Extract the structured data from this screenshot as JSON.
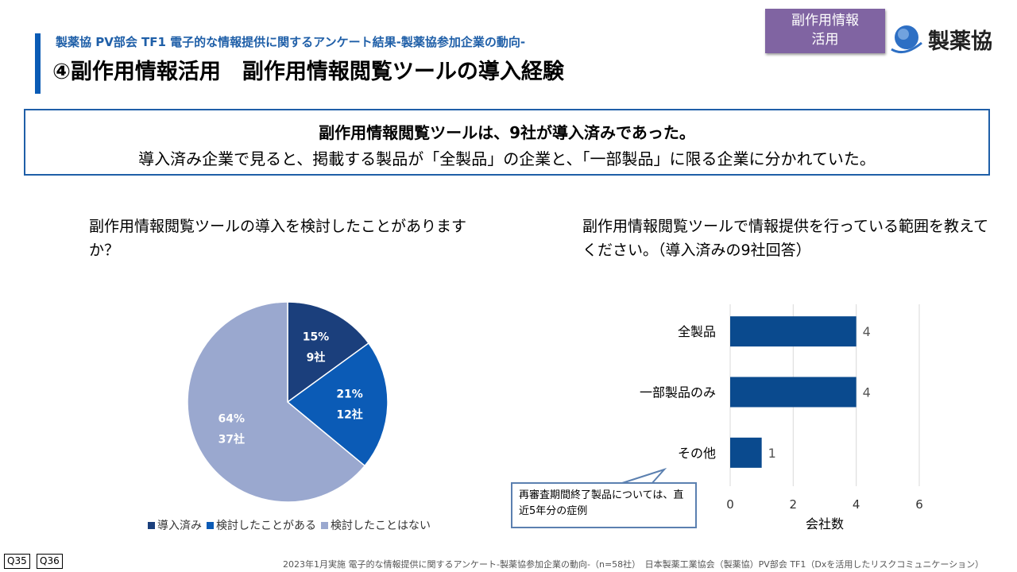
{
  "header": {
    "subtitle": "製薬協 PV部会 TF1 電子的な情報提供に関するアンケート結果-製薬協参加企業の動向-",
    "title": "④副作用情報活用　副作用情報閲覧ツールの導入経験",
    "badge": "副作用情報\n活用",
    "logo_text": "製薬協"
  },
  "summary": {
    "line1": "副作用情報閲覧ツールは、9社が導入済みであった。",
    "line2": "導入済み企業で見ると、掲載する製品が「全製品」の企業と、「一部製品」に限る企業に分かれていた。"
  },
  "questions": {
    "q1": "副作用情報閲覧ツールの導入を検討したことがありますか？",
    "q2": "副作用情報閲覧ツールで情報提供を行っている範囲を教えてください。（導入済みの9社回答）"
  },
  "chart_data": [
    {
      "type": "pie",
      "slices": [
        {
          "name": "導入済み",
          "percent": 15,
          "count_label": "9社",
          "color": "#1b3f7c",
          "label": "15%"
        },
        {
          "name": "検討したことがある",
          "percent": 21,
          "count_label": "12社",
          "color": "#0b5bb6",
          "label": "21%"
        },
        {
          "name": "検討したことはない",
          "percent": 64,
          "count_label": "37社",
          "color": "#9aa8cf",
          "label": "64%"
        }
      ],
      "legend": "bottom"
    },
    {
      "type": "bar",
      "orientation": "horizontal",
      "categories": [
        "全製品",
        "一部製品のみ",
        "その他"
      ],
      "values": [
        4,
        4,
        1
      ],
      "xlabel": "会社数",
      "xlim": [
        0,
        6
      ],
      "xticks": [
        "0",
        "2",
        "4",
        "6"
      ],
      "color": "#0a4a8e",
      "grid": true
    }
  ],
  "callout": "再審査期間終了製品については、直近5年分の症例",
  "footer": {
    "q_tags": [
      "Q35",
      "Q36"
    ],
    "note": "2023年1月実施 電子的な情報提供に関するアンケート-製薬協参加企業の動向-（n=58社）　日本製薬工業協会（製薬協）PV部会 TF1（Dxを活用したリスクコミュニケーション）"
  }
}
